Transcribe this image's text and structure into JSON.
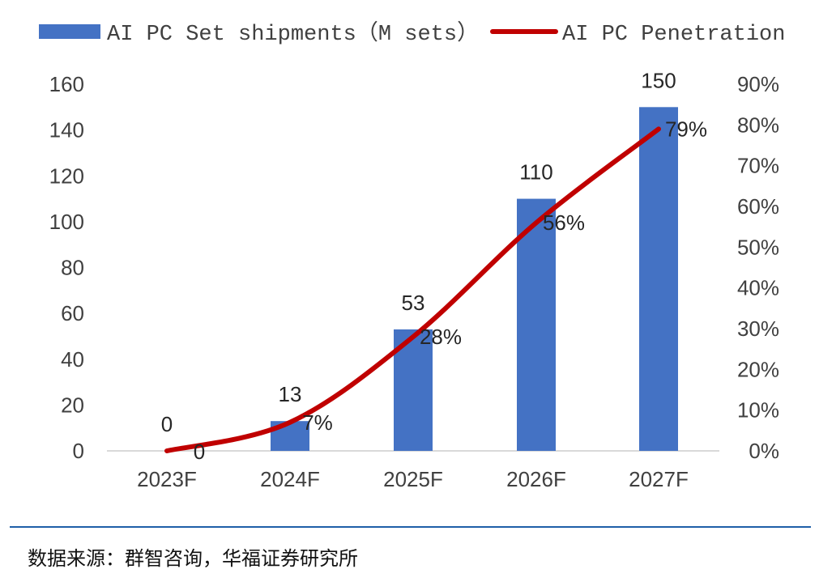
{
  "chart_data": {
    "type": "bar+line",
    "categories": [
      "2023F",
      "2024F",
      "2025F",
      "2026F",
      "2027F"
    ],
    "series": [
      {
        "name": "AI PC Set shipments（M sets）",
        "type": "bar",
        "axis": "left",
        "values": [
          0,
          13,
          53,
          110,
          150
        ],
        "labels": [
          "0",
          "13",
          "53",
          "110",
          "150"
        ],
        "color": "#4472c4"
      },
      {
        "name": "AI PC Penetration",
        "type": "line",
        "axis": "right",
        "values": [
          0,
          7,
          28,
          56,
          79
        ],
        "labels": [
          "0",
          "7%",
          "28%",
          "56%",
          "79%"
        ],
        "color": "#c00000"
      }
    ],
    "y_left": {
      "ylim": [
        0,
        160
      ],
      "ticks": [
        "0",
        "20",
        "40",
        "60",
        "80",
        "100",
        "120",
        "140",
        "160"
      ]
    },
    "y_right": {
      "ylim": [
        0,
        90
      ],
      "ticks": [
        "0%",
        "10%",
        "20%",
        "30%",
        "40%",
        "50%",
        "60%",
        "70%",
        "80%",
        "90%"
      ]
    },
    "legend": "top",
    "grid": false
  },
  "source_note": "数据来源：群智咨询，华福证券研究所"
}
